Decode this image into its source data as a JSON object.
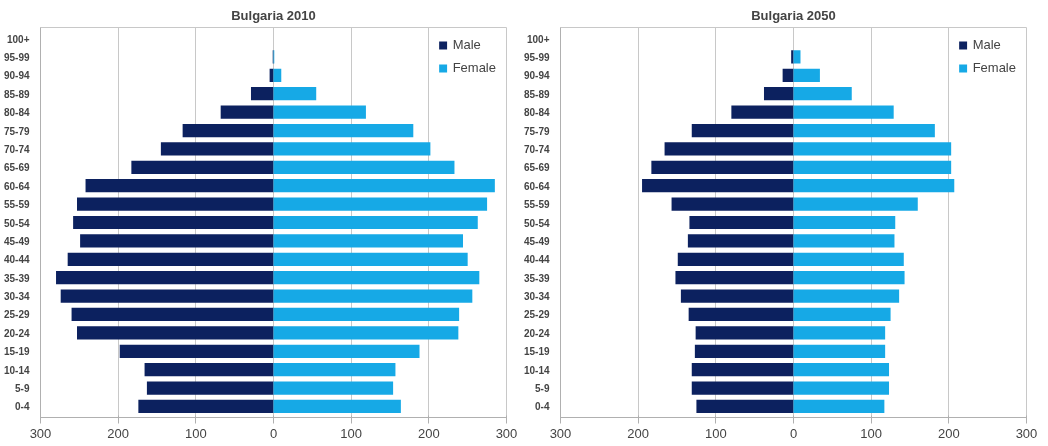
{
  "chart_data": [
    {
      "type": "bar",
      "orientation": "horizontal",
      "stacked": true,
      "title": "Bulgaria 2010",
      "categories": [
        "100+",
        "95-99",
        "90-94",
        "85-89",
        "80-84",
        "75-79",
        "70-74",
        "65-69",
        "60-64",
        "55-59",
        "50-54",
        "45-49",
        "40-44",
        "35-39",
        "30-34",
        "25-29",
        "20-24",
        "15-19",
        "10-14",
        "5-9",
        "0-4"
      ],
      "series": [
        {
          "name": "Male",
          "color": "#0c215f",
          "values": [
            0,
            -1,
            -5,
            -29,
            -68,
            -117,
            -145,
            -183,
            -242,
            -253,
            -258,
            -249,
            -265,
            -280,
            -274,
            -260,
            -253,
            -198,
            -166,
            -163,
            -174
          ]
        },
        {
          "name": "Female",
          "color": "#16a9e6",
          "values": [
            0,
            1,
            10,
            55,
            119,
            180,
            202,
            233,
            285,
            275,
            263,
            244,
            250,
            265,
            256,
            239,
            238,
            188,
            157,
            154,
            164
          ]
        }
      ],
      "xlim": [
        -300,
        300
      ],
      "xticks": [
        {
          "value": -300,
          "label": "300"
        },
        {
          "value": -200,
          "label": "200"
        },
        {
          "value": -100,
          "label": "100"
        },
        0,
        100,
        200,
        300
      ],
      "grid": "x",
      "legend": "top right"
    },
    {
      "type": "bar",
      "orientation": "horizontal",
      "stacked": true,
      "title": "Bulgaria 2050",
      "categories": [
        "100+",
        "95-99",
        "90-94",
        "85-89",
        "80-84",
        "75-79",
        "70-74",
        "65-69",
        "60-64",
        "55-59",
        "50-54",
        "45-49",
        "40-44",
        "35-39",
        "30-34",
        "25-29",
        "20-24",
        "15-19",
        "10-14",
        "5-9",
        "0-4"
      ],
      "series": [
        {
          "name": "Male",
          "color": "#0c215f",
          "values": [
            0,
            -3,
            -14,
            -38,
            -80,
            -131,
            -166,
            -183,
            -195,
            -157,
            -134,
            -136,
            -149,
            -152,
            -145,
            -135,
            -126,
            -127,
            -131,
            -131,
            -125
          ]
        },
        {
          "name": "Female",
          "color": "#16a9e6",
          "values": [
            0,
            9,
            34,
            75,
            129,
            182,
            203,
            203,
            207,
            160,
            131,
            130,
            142,
            143,
            136,
            125,
            118,
            118,
            123,
            123,
            117
          ]
        }
      ],
      "xlim": [
        -300,
        300
      ],
      "xticks": [
        {
          "value": -300,
          "label": "300"
        },
        {
          "value": -200,
          "label": "200"
        },
        {
          "value": -100,
          "label": "100"
        },
        0,
        100,
        200,
        300
      ],
      "grid": "x",
      "legend": "top right"
    }
  ]
}
